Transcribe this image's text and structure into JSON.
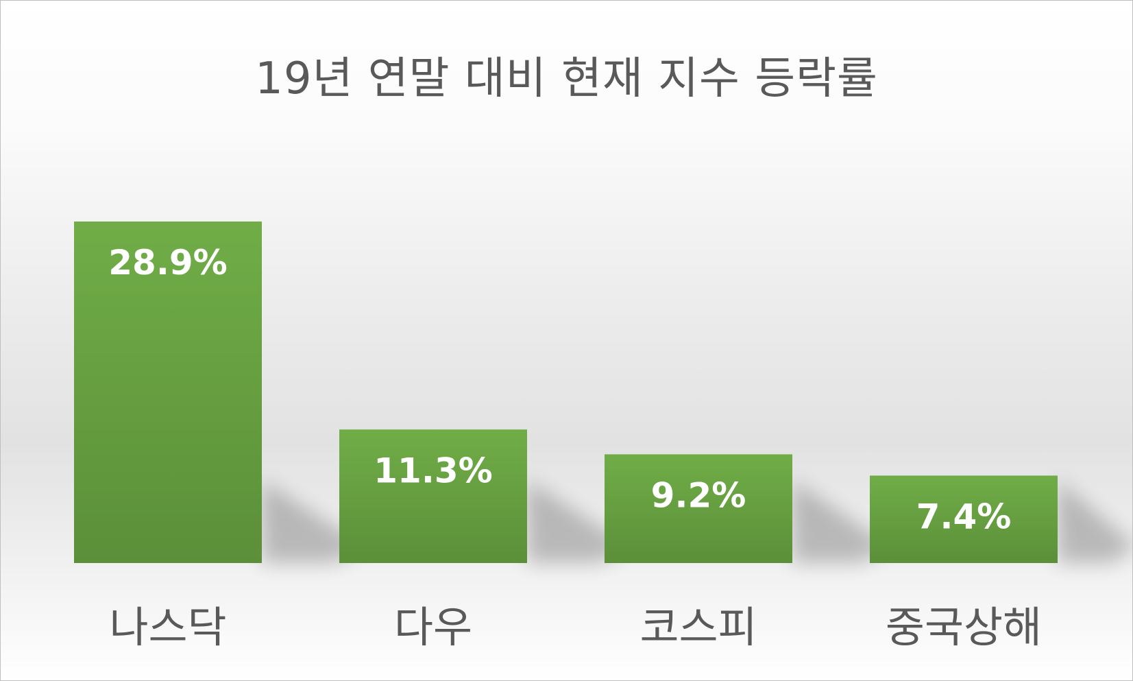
{
  "chart_data": {
    "type": "bar",
    "title": "19년 연말 대비 현재 지수 등락률",
    "categories": [
      "나스닥",
      "다우",
      "코스피",
      "중국상해"
    ],
    "values": [
      28.9,
      11.3,
      9.2,
      7.4
    ],
    "data_labels": [
      "28.9%",
      "11.3%",
      "9.2%",
      "7.4%"
    ],
    "ylim": [
      0,
      28.9
    ],
    "grid": false,
    "legend": "none",
    "colors": {
      "bar_top": "#70ad47",
      "bar_bottom": "#5b8f39",
      "label": "#ffffff",
      "category": "#595959",
      "title": "#595959"
    }
  }
}
